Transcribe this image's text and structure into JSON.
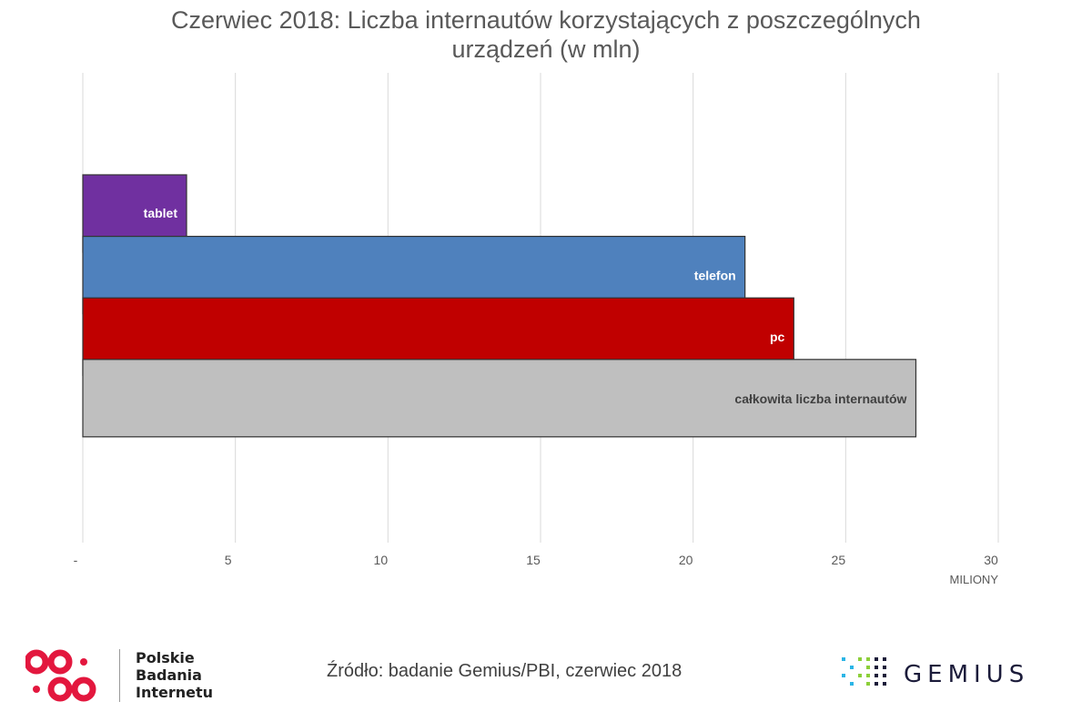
{
  "chart_data": {
    "type": "bar",
    "orientation": "horizontal",
    "title_line1": "Czerwiec 2018: Liczba internautów korzystających z poszczególnych",
    "title_line2": "urządzeń (w mln)",
    "xlabel": "MILIONY",
    "xlim": [
      0,
      30
    ],
    "x_ticks": [
      "-",
      "5",
      "10",
      "15",
      "20",
      "25",
      "30"
    ],
    "grid": "vertical",
    "series": [
      {
        "label": "tablet",
        "value": 3.4,
        "color": "#7030A0",
        "label_color": "#ffffff"
      },
      {
        "label": "telefon",
        "value": 21.7,
        "color": "#4F81BD",
        "label_color": "#ffffff"
      },
      {
        "label": "pc",
        "value": 23.3,
        "color": "#C00000",
        "label_color": "#ffffff"
      },
      {
        "label": "całkowita liczba internautów",
        "value": 27.3,
        "color": "#BFBFBF",
        "label_color": "#404040"
      }
    ]
  },
  "footer": {
    "source": "Źródło: badanie Gemius/PBI, czerwiec 2018",
    "pbi_line1": "Polskie",
    "pbi_line2": "Badania",
    "pbi_line3": "Internetu",
    "pbi_color": "#E3173E",
    "gemius_text": "GEMIUS",
    "gemius_color": "#1b1b3a",
    "gemius_dot_color": "#2bb5e6"
  }
}
